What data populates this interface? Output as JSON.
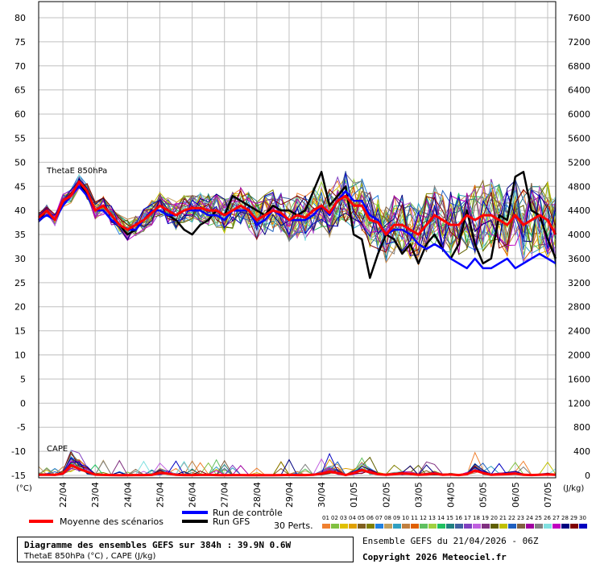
{
  "chart_data": {
    "type": "line",
    "title": "Diagramme des ensembles GEFS sur 384h : 39.9N 0.6W",
    "subtitle": "ThetaE 850hPa (°C) , CAPE (J/kg)",
    "left_axis": {
      "unit": "(°C)",
      "ticks": [
        "80",
        "75",
        "70",
        "65",
        "60",
        "55",
        "50",
        "45",
        "40",
        "35",
        "30",
        "25",
        "20",
        "15",
        "10",
        "5",
        "0",
        "-5",
        "-10",
        "-15"
      ],
      "range": [
        -15,
        80
      ]
    },
    "right_axis": {
      "unit": "(J/kg)",
      "ticks": [
        "7600",
        "7200",
        "6800",
        "6400",
        "6000",
        "5600",
        "5200",
        "4800",
        "4400",
        "4000",
        "3600",
        "3200",
        "2800",
        "2400",
        "2000",
        "1600",
        "1200",
        "800",
        "400",
        "0"
      ],
      "range": [
        0,
        7600
      ]
    },
    "x_axis": {
      "ticks": [
        "22/04",
        "23/04",
        "24/04",
        "25/04",
        "26/04",
        "27/04",
        "28/04",
        "29/04",
        "30/04",
        "01/05",
        "02/05",
        "03/05",
        "04/05",
        "05/05",
        "06/05",
        "07/05"
      ],
      "start": "21/04/2026 06Z",
      "step_hours": 6,
      "steps": 64
    },
    "panels": {
      "thetae": "ThetaE 850hPa",
      "cape": "CAPE"
    },
    "thetae_mean": [
      38.5,
      40,
      38,
      42,
      43,
      46,
      44,
      40,
      41,
      39,
      37,
      36,
      37,
      38,
      39.5,
      41,
      40,
      39,
      40,
      40.5,
      40.5,
      40,
      40,
      39,
      40,
      41,
      40,
      38,
      39,
      40,
      39.5,
      38,
      39,
      38.5,
      40,
      41,
      39.5,
      42,
      43,
      41,
      41,
      38,
      37.5,
      35,
      37,
      37,
      36,
      35,
      37,
      39,
      38,
      37,
      37,
      39,
      38,
      39,
      39,
      38,
      37,
      39,
      37,
      38,
      39,
      38,
      35
    ],
    "thetae_control": [
      38,
      39,
      38,
      41,
      43,
      45,
      43,
      40,
      40,
      38,
      37,
      36,
      36,
      38,
      40,
      40,
      39,
      39,
      40,
      40,
      40,
      39,
      39,
      38,
      40,
      40,
      40,
      37,
      38,
      40,
      39,
      38,
      38,
      38,
      39,
      41,
      39,
      42,
      44,
      42,
      42,
      39,
      38,
      35,
      36,
      36,
      35,
      33,
      32,
      33,
      32,
      30,
      29,
      28,
      30,
      28,
      28,
      29,
      30,
      28,
      29,
      30,
      31,
      30,
      29
    ],
    "thetae_gfs": [
      38,
      40,
      38,
      42,
      43,
      46,
      43,
      40,
      41,
      39,
      37,
      35,
      36,
      38,
      40,
      40,
      39,
      38,
      36,
      35,
      37,
      38,
      40,
      39,
      43,
      42,
      41,
      40,
      39,
      41,
      40,
      40,
      39,
      40,
      44,
      48,
      41,
      43,
      45,
      35,
      34,
      26,
      31,
      35,
      34,
      31,
      33,
      29,
      33,
      35,
      32,
      30,
      33,
      40,
      33,
      29,
      30,
      39,
      38,
      47,
      48,
      40,
      39,
      34,
      30
    ],
    "cape_mean": [
      10,
      12,
      8,
      30,
      170,
      110,
      60,
      12,
      8,
      5,
      3,
      4,
      6,
      5,
      8,
      40,
      30,
      10,
      5,
      5,
      8,
      10,
      6,
      4,
      5,
      5,
      4,
      4,
      3,
      3,
      5,
      8,
      6,
      5,
      10,
      30,
      60,
      40,
      5,
      40,
      90,
      50,
      20,
      10,
      20,
      30,
      25,
      10,
      15,
      30,
      10,
      15,
      5,
      20,
      80,
      40,
      10,
      15,
      20,
      30,
      10,
      5,
      10,
      15,
      10
    ],
    "members_count": 30,
    "legend": {
      "mean": "Moyenne des scénarios",
      "control": "Run de contrôle",
      "gfs": "Run GFS",
      "perts": "30 Perts."
    },
    "pert_numbers": [
      "01",
      "02",
      "03",
      "04",
      "05",
      "06",
      "07",
      "08",
      "09",
      "10",
      "11",
      "12",
      "13",
      "14",
      "15",
      "16",
      "17",
      "18",
      "19",
      "20",
      "21",
      "22",
      "23",
      "24",
      "25",
      "26",
      "27",
      "28",
      "29",
      "30"
    ],
    "pert_colors": [
      "#f08030",
      "#80c040",
      "#e0c000",
      "#e0a000",
      "#806020",
      "#808000",
      "#2080e0",
      "#c0a060",
      "#30a0c0",
      "#c08040",
      "#e06000",
      "#60c060",
      "#a0d040",
      "#20c060",
      "#208080",
      "#4060a0",
      "#8040c0",
      "#c060e0",
      "#803080",
      "#606000",
      "#c0c000",
      "#2060c0",
      "#806040",
      "#a000a0",
      "#808080",
      "#80e0e0",
      "#c000c0",
      "#000080",
      "#800000",
      "#0000c0"
    ],
    "colors": {
      "mean": "#ff0000",
      "control": "#0000ff",
      "gfs": "#000000",
      "grid": "#c0c0c0"
    }
  },
  "info": {
    "title": "Diagramme des ensembles GEFS sur 384h : 39.9N 0.6W",
    "subtitle": "ThetaE 850hPa (°C) , CAPE (J/kg)",
    "run": "Ensemble GEFS du 21/04/2026 - 06Z",
    "copyright": "Copyright 2026 Meteociel.fr"
  }
}
